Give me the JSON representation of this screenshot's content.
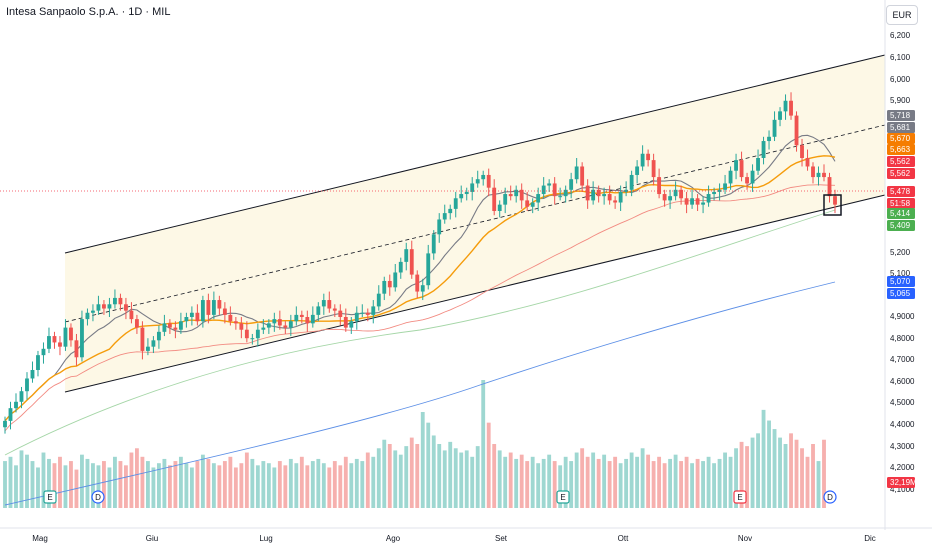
{
  "header": {
    "title": "Intesa Sanpaolo S.p.A. · 1D · MIL",
    "currency": "EUR"
  },
  "chart_data": {
    "type": "candlestick",
    "title": "Intesa Sanpaolo S.p.A. · 1D · MIL",
    "xlabel": "",
    "ylabel": "",
    "currency": "EUR",
    "y_ticks": [
      "6,200",
      "6,100",
      "6,000",
      "5,900",
      "5,200",
      "5,100",
      "4,9000",
      "4,8000",
      "4,7000",
      "4,6000",
      "4,5000",
      "4,4000",
      "4,3000",
      "4,2000",
      "4,1000"
    ],
    "x_ticks": [
      "Mag",
      "Giu",
      "Lug",
      "Ago",
      "Set",
      "Ott",
      "Nov",
      "Dic"
    ],
    "price_tags": [
      {
        "text": "5,718",
        "color": "#787b86"
      },
      {
        "text": "5,681",
        "color": "#787b86"
      },
      {
        "text": "5,670",
        "color": "#f57c00"
      },
      {
        "text": "5,663",
        "color": "#f57c00"
      },
      {
        "text": "5,562",
        "color": "#f23645"
      },
      {
        "text": "5,562",
        "color": "#f23645"
      },
      {
        "text": "5,478",
        "color": "#f23645"
      },
      {
        "text": "51:58",
        "color": "#f23645"
      },
      {
        "text": "5,414",
        "color": "#4caf50"
      },
      {
        "text": "5,409",
        "color": "#4caf50"
      },
      {
        "text": "5,070",
        "color": "#2962ff"
      },
      {
        "text": "5,065",
        "color": "#2962ff"
      },
      {
        "text": "32,19M",
        "color": "#f23645"
      }
    ],
    "event_markers": [
      {
        "label": "E",
        "date": "Mag"
      },
      {
        "label": "D",
        "date": "Mag"
      },
      {
        "label": "E",
        "date": "Set"
      },
      {
        "label": "E",
        "date": "Nov"
      },
      {
        "label": "D",
        "date": "Nov"
      }
    ],
    "indicators": [
      "MA 10",
      "MA 20",
      "MA 50",
      "MA 100",
      "MA 200"
    ],
    "channel": "ascending parallel channel with dashed midline",
    "colors": {
      "up": "#26a69a",
      "down": "#ef5350",
      "ma10": "#787b86",
      "ma20": "#f59c0b",
      "ma50": "#f28b82",
      "ma100": "#a5d6a7",
      "ma200": "#5c8fe6",
      "channel_fill": "#fdf7e3"
    },
    "closes": [
      4.46,
      4.52,
      4.55,
      4.6,
      4.66,
      4.7,
      4.77,
      4.8,
      4.86,
      4.83,
      4.81,
      4.9,
      4.84,
      4.76,
      4.94,
      4.97,
      4.98,
      5.01,
      4.99,
      5.01,
      5.04,
      5.01,
      4.98,
      4.94,
      4.9,
      4.79,
      4.81,
      4.84,
      4.88,
      4.92,
      4.9,
      4.89,
      4.93,
      4.95,
      4.97,
      4.93,
      5.03,
      4.96,
      5.03,
      4.99,
      4.96,
      4.93,
      4.92,
      4.89,
      4.85,
      4.85,
      4.89,
      4.9,
      4.92,
      4.94,
      4.91,
      4.9,
      4.93,
      4.96,
      4.95,
      4.92,
      4.96,
      5.0,
      5.03,
      4.99,
      4.98,
      4.95,
      4.9,
      4.93,
      4.97,
      4.97,
      4.96,
      5.0,
      5.06,
      5.12,
      5.09,
      5.16,
      5.21,
      5.27,
      5.15,
      5.07,
      5.1,
      5.25,
      5.34,
      5.41,
      5.44,
      5.46,
      5.51,
      5.53,
      5.54,
      5.58,
      5.6,
      5.62,
      5.56,
      5.45,
      5.48,
      5.53,
      5.52,
      5.55,
      5.5,
      5.47,
      5.49,
      5.53,
      5.57,
      5.58,
      5.52,
      5.52,
      5.55,
      5.6,
      5.66,
      5.57,
      5.5,
      5.55,
      5.52,
      5.53,
      5.5,
      5.49,
      5.54,
      5.55,
      5.62,
      5.66,
      5.72,
      5.69,
      5.61,
      5.53,
      5.5,
      5.52,
      5.55,
      5.51,
      5.48,
      5.51,
      5.48,
      5.49,
      5.53,
      5.54,
      5.55,
      5.58,
      5.64,
      5.69,
      5.61,
      5.58,
      5.64,
      5.7,
      5.78,
      5.8,
      5.88,
      5.92,
      5.97,
      5.9,
      5.76,
      5.7,
      5.66,
      5.61,
      5.63,
      5.61,
      5.52,
      5.48
    ],
    "volumes": [
      22,
      24,
      20,
      27,
      25,
      22,
      19,
      26,
      23,
      21,
      24,
      20,
      22,
      18,
      25,
      23,
      21,
      20,
      22,
      19,
      24,
      22,
      20,
      26,
      28,
      24,
      22,
      19,
      21,
      23,
      20,
      22,
      24,
      21,
      19,
      22,
      25,
      23,
      21,
      20,
      22,
      24,
      19,
      21,
      26,
      23,
      20,
      22,
      21,
      19,
      22,
      20,
      23,
      21,
      24,
      20,
      22,
      23,
      21,
      19,
      22,
      20,
      24,
      21,
      23,
      22,
      26,
      24,
      28,
      32,
      30,
      27,
      25,
      29,
      33,
      30,
      45,
      40,
      34,
      30,
      27,
      31,
      28,
      26,
      27,
      24,
      29,
      60,
      40,
      30,
      27,
      24,
      26,
      23,
      25,
      22,
      24,
      21,
      23,
      25,
      22,
      20,
      24,
      22,
      26,
      28,
      24,
      26,
      23,
      25,
      22,
      24,
      21,
      23,
      26,
      24,
      28,
      25,
      22,
      24,
      21,
      23,
      25,
      22,
      24,
      21,
      23,
      22,
      24,
      21,
      23,
      26,
      24,
      28,
      31,
      29,
      33,
      35,
      46,
      41,
      37,
      33,
      30,
      35,
      32,
      28,
      24,
      30,
      22,
      32
    ],
    "volume_up_flags_note": "volume bar color follows candle direction"
  }
}
